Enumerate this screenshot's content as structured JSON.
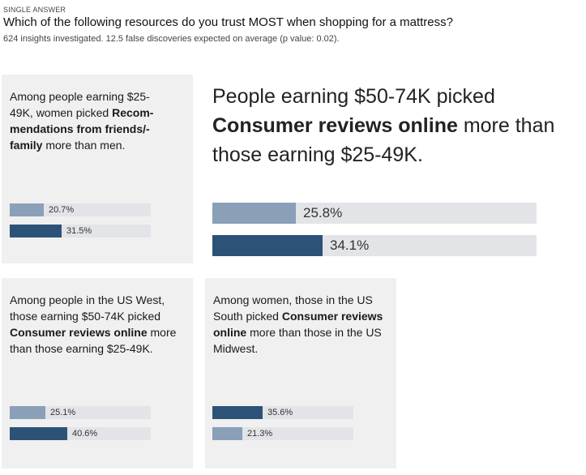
{
  "header": {
    "tag": "SINGLE ANSWER",
    "question": "Which of the following resources do you trust MOST when shopping for a mattress?",
    "subtitle": "624 insights investigated. 12.5 false discoveries expected on average (p value: 0.02)."
  },
  "chart_data": [
    {
      "type": "bar",
      "text_parts": [
        {
          "text": "Among people earning $25-49K, women picked "
        },
        {
          "text": "Recom-mendations from friends/-family",
          "bold": true
        },
        {
          "text": " more than men."
        }
      ],
      "values": [
        20.7,
        31.5
      ],
      "labels": [
        "20.7%",
        "31.5%"
      ],
      "colors": [
        "#8a9fb8",
        "#2d5278"
      ]
    },
    {
      "type": "bar",
      "text_parts": [
        {
          "text": "People earning $50-74K picked "
        },
        {
          "text": "Consumer reviews online",
          "bold": true
        },
        {
          "text": " more than those earning $25-49K."
        }
      ],
      "values": [
        25.8,
        34.1
      ],
      "labels": [
        "25.8%",
        "34.1%"
      ],
      "colors": [
        "#8a9fb8",
        "#2d5278"
      ]
    },
    {
      "type": "bar",
      "text_parts": [
        {
          "text": "Among people in the US West, those earning $50-74K picked "
        },
        {
          "text": "Consumer reviews online",
          "bold": true
        },
        {
          "text": " more than those earning $25-49K."
        }
      ],
      "values": [
        25.1,
        40.6
      ],
      "labels": [
        "25.1%",
        "40.6%"
      ],
      "colors": [
        "#8a9fb8",
        "#2d5278"
      ]
    },
    {
      "type": "bar",
      "text_parts": [
        {
          "text": "Among women, those in the US South picked "
        },
        {
          "text": "Consumer reviews online",
          "bold": true
        },
        {
          "text": " more than those in the US Midwest."
        }
      ],
      "values": [
        35.6,
        21.3
      ],
      "labels": [
        "35.6%",
        "21.3%"
      ],
      "colors": [
        "#2d5278",
        "#8a9fb8"
      ]
    }
  ]
}
